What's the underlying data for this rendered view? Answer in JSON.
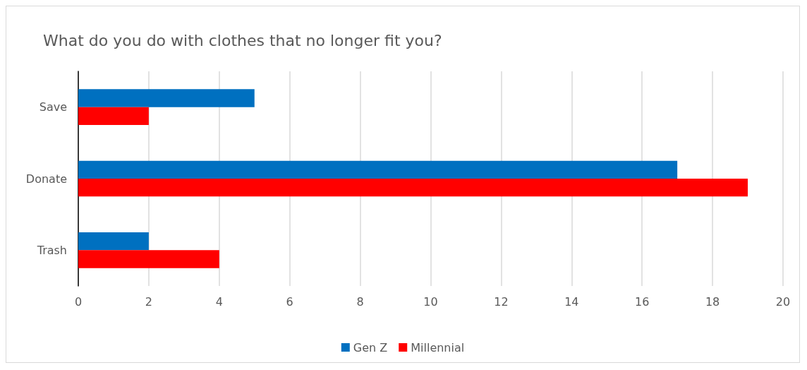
{
  "chart_data": {
    "type": "bar",
    "orientation": "horizontal",
    "title": "What do you do with clothes that no longer fit you?",
    "categories": [
      "Save",
      "Donate",
      "Trash"
    ],
    "series": [
      {
        "name": "Gen Z",
        "color": "#0070c0",
        "values": [
          5,
          17,
          2
        ]
      },
      {
        "name": "Millennial",
        "color": "#ff0000",
        "values": [
          2,
          19,
          4
        ]
      }
    ],
    "xlim": [
      0,
      20
    ],
    "xticks": [
      0,
      2,
      4,
      6,
      8,
      10,
      12,
      14,
      16,
      18,
      20
    ],
    "grid": "x",
    "legend": "bottom"
  }
}
